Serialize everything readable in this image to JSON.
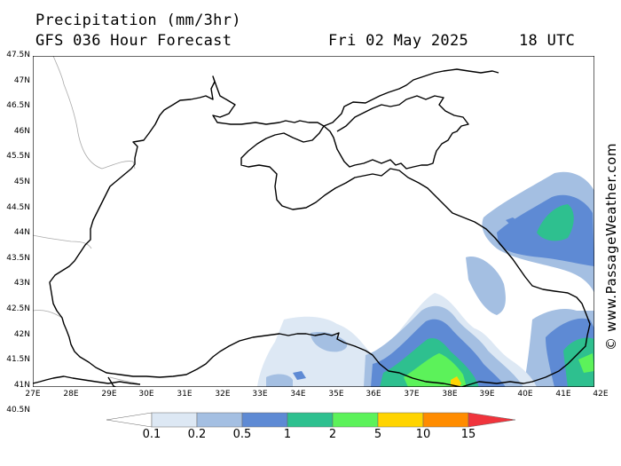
{
  "header": {
    "title": "Precipitation (mm/3hr)",
    "subtitle": "GFS 036 Hour Forecast",
    "date": "Fri 02 May 2025",
    "time": "18 UTC"
  },
  "axes": {
    "lat_labels": [
      "47.5N",
      "47N",
      "46.5N",
      "46N",
      "45.5N",
      "45N",
      "44.5N",
      "44N",
      "43.5N",
      "43N",
      "42.5N",
      "42N",
      "41.5N",
      "41N",
      "40.5N"
    ],
    "lon_labels": [
      "27E",
      "28E",
      "29E",
      "30E",
      "31E",
      "32E",
      "33E",
      "34E",
      "35E",
      "36E",
      "37E",
      "38E",
      "39E",
      "40E",
      "41E",
      "42E"
    ]
  },
  "credit": "© www.PassageWeather.com",
  "legend": {
    "labels": [
      "0.1",
      "0.2",
      "0.5",
      "1",
      "2",
      "5",
      "10",
      "15"
    ],
    "colors": [
      "#ffffff",
      "#dde8f4",
      "#a4bfe2",
      "#5e8ad4",
      "#2ec08f",
      "#5cf25a",
      "#ffd400",
      "#ff8c00",
      "#f0343c"
    ]
  },
  "map": {
    "region": "Black Sea",
    "features": [
      "coastline",
      "borders",
      "precipitation"
    ]
  }
}
